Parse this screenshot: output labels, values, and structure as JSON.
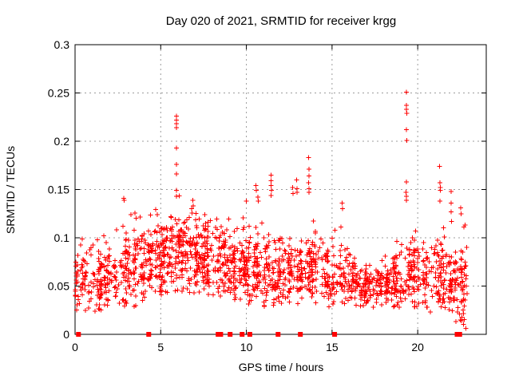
{
  "window": {
    "background": "#ffffff"
  },
  "chart_data": {
    "type": "scatter",
    "title": "Day 020 of 2021, SRMTID for receiver krgg",
    "xlabel": "GPS time / hours",
    "ylabel": "SRMTID / TECUs",
    "xlim": [
      0,
      24
    ],
    "ylim": [
      0,
      0.3
    ],
    "xticks": {
      "values": [
        0,
        5,
        10,
        15,
        20
      ],
      "labels": [
        "0",
        "5",
        "10",
        "15",
        "20"
      ]
    },
    "yticks": {
      "values": [
        0,
        0.05,
        0.1,
        0.15,
        0.2,
        0.25,
        0.3
      ],
      "labels": [
        "0",
        "0.05",
        "0.1",
        "0.15",
        "0.2",
        "0.25",
        "0.3"
      ]
    },
    "grid": {
      "visible": true,
      "style": "dotted",
      "color": "#9c9c9c"
    },
    "legend": {
      "visible": false
    },
    "marker": {
      "shape": "plus",
      "color": "#ff0000",
      "size": 7
    },
    "zero_marker": {
      "shape": "filled-square",
      "color": "#ff0000",
      "size": 6
    },
    "series_name": "SRMTID",
    "outliers": [
      [
        2.84,
        0.141
      ],
      [
        2.87,
        0.139
      ],
      [
        5.93,
        0.226
      ],
      [
        5.91,
        0.222
      ],
      [
        5.93,
        0.218
      ],
      [
        5.93,
        0.214
      ],
      [
        5.92,
        0.193
      ],
      [
        5.93,
        0.176
      ],
      [
        5.91,
        0.166
      ],
      [
        5.93,
        0.149
      ],
      [
        5.93,
        0.143
      ],
      [
        6.88,
        0.139
      ],
      [
        6.9,
        0.133
      ],
      [
        9.99,
        0.138
      ],
      [
        10.55,
        0.154
      ],
      [
        10.58,
        0.149
      ],
      [
        10.68,
        0.142
      ],
      [
        10.7,
        0.138
      ],
      [
        11.43,
        0.165
      ],
      [
        11.45,
        0.159
      ],
      [
        11.45,
        0.154
      ],
      [
        11.47,
        0.149
      ],
      [
        11.44,
        0.144
      ],
      [
        12.71,
        0.152
      ],
      [
        12.73,
        0.146
      ],
      [
        12.94,
        0.16
      ],
      [
        12.95,
        0.151
      ],
      [
        12.96,
        0.147
      ],
      [
        13.64,
        0.183
      ],
      [
        13.65,
        0.171
      ],
      [
        13.66,
        0.164
      ],
      [
        13.64,
        0.157
      ],
      [
        13.65,
        0.151
      ],
      [
        13.66,
        0.147
      ],
      [
        15.58,
        0.136
      ],
      [
        15.6,
        0.13
      ],
      [
        19.34,
        0.251
      ],
      [
        19.35,
        0.237
      ],
      [
        19.33,
        0.233
      ],
      [
        19.36,
        0.229
      ],
      [
        19.35,
        0.212
      ],
      [
        19.36,
        0.201
      ],
      [
        19.34,
        0.158
      ],
      [
        19.32,
        0.147
      ],
      [
        19.35,
        0.143
      ],
      [
        19.33,
        0.139
      ],
      [
        21.28,
        0.174
      ],
      [
        21.3,
        0.157
      ],
      [
        21.31,
        0.152
      ],
      [
        21.33,
        0.149
      ],
      [
        21.3,
        0.138
      ],
      [
        21.94,
        0.148
      ],
      [
        21.96,
        0.136
      ],
      [
        21.95,
        0.127
      ],
      [
        21.97,
        0.117
      ],
      [
        22.5,
        0.131
      ],
      [
        22.53,
        0.125
      ]
    ],
    "zero_crossings_hours": [
      0.2,
      4.3,
      8.35,
      8.5,
      9.05,
      9.75,
      10.2,
      11.85,
      13.15,
      15.15,
      22.3,
      22.45
    ],
    "density_bins": [
      {
        "x0": 0.0,
        "x1": 0.6,
        "n": 40,
        "mean": 0.06,
        "sd": 0.022,
        "min": 0.02,
        "max": 0.105
      },
      {
        "x0": 0.6,
        "x1": 1.5,
        "n": 60,
        "mean": 0.055,
        "sd": 0.018,
        "min": 0.02,
        "max": 0.11
      },
      {
        "x0": 1.5,
        "x1": 2.5,
        "n": 70,
        "mean": 0.058,
        "sd": 0.02,
        "min": 0.025,
        "max": 0.125
      },
      {
        "x0": 2.5,
        "x1": 3.5,
        "n": 80,
        "mean": 0.065,
        "sd": 0.022,
        "min": 0.028,
        "max": 0.13
      },
      {
        "x0": 3.5,
        "x1": 4.5,
        "n": 85,
        "mean": 0.072,
        "sd": 0.02,
        "min": 0.032,
        "max": 0.125
      },
      {
        "x0": 4.5,
        "x1": 5.5,
        "n": 95,
        "mean": 0.082,
        "sd": 0.02,
        "min": 0.04,
        "max": 0.13
      },
      {
        "x0": 5.5,
        "x1": 6.5,
        "n": 100,
        "mean": 0.088,
        "sd": 0.022,
        "min": 0.042,
        "max": 0.145
      },
      {
        "x0": 6.5,
        "x1": 7.5,
        "n": 95,
        "mean": 0.082,
        "sd": 0.02,
        "min": 0.04,
        "max": 0.138
      },
      {
        "x0": 7.5,
        "x1": 8.5,
        "n": 95,
        "mean": 0.078,
        "sd": 0.022,
        "min": 0.032,
        "max": 0.14
      },
      {
        "x0": 8.5,
        "x1": 9.5,
        "n": 90,
        "mean": 0.072,
        "sd": 0.02,
        "min": 0.03,
        "max": 0.132
      },
      {
        "x0": 9.5,
        "x1": 10.5,
        "n": 90,
        "mean": 0.072,
        "sd": 0.022,
        "min": 0.03,
        "max": 0.142
      },
      {
        "x0": 10.5,
        "x1": 11.5,
        "n": 85,
        "mean": 0.066,
        "sd": 0.02,
        "min": 0.027,
        "max": 0.135
      },
      {
        "x0": 11.5,
        "x1": 12.5,
        "n": 80,
        "mean": 0.06,
        "sd": 0.02,
        "min": 0.025,
        "max": 0.128
      },
      {
        "x0": 12.5,
        "x1": 13.5,
        "n": 80,
        "mean": 0.064,
        "sd": 0.02,
        "min": 0.028,
        "max": 0.135
      },
      {
        "x0": 13.5,
        "x1": 14.5,
        "n": 78,
        "mean": 0.066,
        "sd": 0.018,
        "min": 0.03,
        "max": 0.125
      },
      {
        "x0": 14.5,
        "x1": 15.5,
        "n": 75,
        "mean": 0.062,
        "sd": 0.018,
        "min": 0.027,
        "max": 0.12
      },
      {
        "x0": 15.5,
        "x1": 16.5,
        "n": 72,
        "mean": 0.056,
        "sd": 0.016,
        "min": 0.022,
        "max": 0.105
      },
      {
        "x0": 16.5,
        "x1": 17.5,
        "n": 70,
        "mean": 0.05,
        "sd": 0.014,
        "min": 0.024,
        "max": 0.09
      },
      {
        "x0": 17.5,
        "x1": 18.5,
        "n": 75,
        "mean": 0.049,
        "sd": 0.013,
        "min": 0.028,
        "max": 0.085
      },
      {
        "x0": 18.5,
        "x1": 19.5,
        "n": 78,
        "mean": 0.058,
        "sd": 0.017,
        "min": 0.028,
        "max": 0.115
      },
      {
        "x0": 19.5,
        "x1": 20.5,
        "n": 78,
        "mean": 0.062,
        "sd": 0.018,
        "min": 0.028,
        "max": 0.125
      },
      {
        "x0": 20.5,
        "x1": 21.5,
        "n": 72,
        "mean": 0.06,
        "sd": 0.018,
        "min": 0.022,
        "max": 0.135
      },
      {
        "x0": 21.5,
        "x1": 22.2,
        "n": 60,
        "mean": 0.055,
        "sd": 0.02,
        "min": 0.015,
        "max": 0.125
      },
      {
        "x0": 22.2,
        "x1": 22.9,
        "n": 60,
        "mean": 0.05,
        "sd": 0.028,
        "min": 0.004,
        "max": 0.13
      }
    ]
  }
}
